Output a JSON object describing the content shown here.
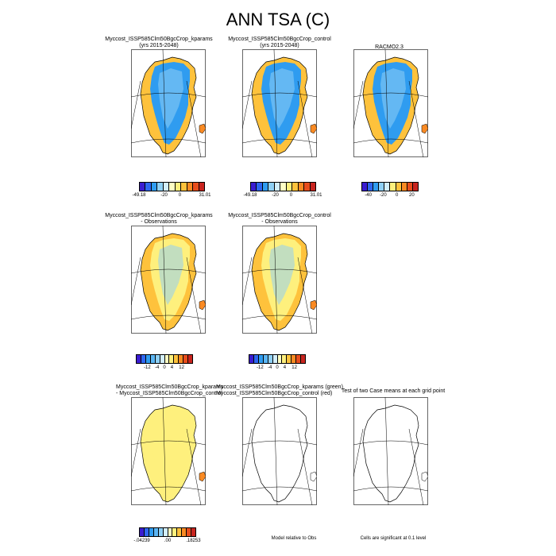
{
  "title": "ANN TSA (C)",
  "panels": [
    {
      "title": "Myccost_ISSP585Clm50BgcCrop_kparams",
      "subtitle": "(yrs 2015-2048)",
      "palette": [
        "#3a1cd0",
        "#2e66f0",
        "#2f9cf0",
        "#8fd0f5",
        "#d2eefb",
        "#ffffc4",
        "#fef07d",
        "#fec23c",
        "#f98a23",
        "#e84d1c",
        "#c8241e"
      ],
      "tick_labels": [
        "-49.18",
        "-20",
        "0",
        "31.01"
      ],
      "tick_pos": [
        0,
        0.38,
        0.62,
        1
      ]
    },
    {
      "title": "Myccost_ISSP585Clm50BgcCrop_control",
      "subtitle": "(yrs 2015-2048)",
      "palette": [
        "#3a1cd0",
        "#2e66f0",
        "#2f9cf0",
        "#8fd0f5",
        "#d2eefb",
        "#ffffc4",
        "#fef07d",
        "#fec23c",
        "#f98a23",
        "#e84d1c",
        "#c8241e"
      ],
      "tick_labels": [
        "-49.18",
        "-20",
        "0",
        "31.01"
      ],
      "tick_pos": [
        0,
        0.38,
        0.62,
        1
      ]
    },
    {
      "title": "RACMO2.3",
      "subtitle": "",
      "palette": [
        "#3a1cd0",
        "#2e66f0",
        "#2f9cf0",
        "#8fd0f5",
        "#d2eefb",
        "#fef07d",
        "#fec23c",
        "#f98a23",
        "#e84d1c",
        "#c8241e"
      ],
      "tick_labels": [
        "-40",
        "-20",
        "0",
        "20"
      ],
      "tick_pos": [
        0.12,
        0.38,
        0.62,
        0.88
      ]
    },
    {
      "title": "Myccost_ISSP585Clm50BgcCrop_kparams",
      "subtitle": "- Observations",
      "palette": [
        "#3a1cd0",
        "#2e66f0",
        "#2f9cf0",
        "#5cb6f4",
        "#8fd0f5",
        "#d2eefb",
        "#ffffc4",
        "#fef07d",
        "#fec23c",
        "#f98a23",
        "#e84d1c",
        "#c8241e"
      ],
      "tick_labels": [
        "-12",
        "-4",
        "0",
        "4",
        "12"
      ],
      "tick_pos": [
        0.2,
        0.37,
        0.5,
        0.63,
        0.8
      ]
    },
    {
      "title": "Myccost_ISSP585Clm50BgcCrop_control",
      "subtitle": "- Observations",
      "palette": [
        "#3a1cd0",
        "#2e66f0",
        "#2f9cf0",
        "#5cb6f4",
        "#8fd0f5",
        "#d2eefb",
        "#ffffc4",
        "#fef07d",
        "#fec23c",
        "#f98a23",
        "#e84d1c",
        "#c8241e"
      ],
      "tick_labels": [
        "-12",
        "-4",
        "0",
        "4",
        "12"
      ],
      "tick_pos": [
        0.2,
        0.37,
        0.5,
        0.63,
        0.8
      ]
    },
    {
      "title": "Myccost_ISSP585Clm50BgcCrop_kparams",
      "subtitle": "- Myccost_ISSP585Clm50BgcCrop_control",
      "palette": [
        "#3a1cd0",
        "#2e66f0",
        "#2f9cf0",
        "#5cb6f4",
        "#8fd0f5",
        "#d2eefb",
        "#ffffc4",
        "#fef07d",
        "#fec23c",
        "#f98a23",
        "#e84d1c",
        "#c8241e"
      ],
      "tick_labels": [
        "-.04239",
        ".00",
        ".18253"
      ],
      "tick_pos": [
        0.05,
        0.5,
        0.95
      ]
    },
    {
      "title": "Myccost_ISSP585Clm50BgcCrop_kparams (green)",
      "subtitle": "Myccost_ISSP585Clm50BgcCrop_control (red)",
      "note": "Model relative to Obs"
    },
    {
      "title": "Test of two Case means at each grid point",
      "subtitle": "",
      "note": "Cells are significant at 0.1 level"
    }
  ],
  "chart_data": {
    "type": "heatmap",
    "title": "ANN TSA (C)",
    "region": "Greenland",
    "panels": [
      {
        "name": "Myccost_ISSP585Clm50BgcCrop_kparams (yrs 2015-2048)",
        "color_min": -49.18,
        "color_max": 31.01,
        "colorbar_ticks": [
          -49.18,
          -20,
          0,
          31.01
        ]
      },
      {
        "name": "Myccost_ISSP585Clm50BgcCrop_control (yrs 2015-2048)",
        "color_min": -49.18,
        "color_max": 31.01,
        "colorbar_ticks": [
          -49.18,
          -20,
          0,
          31.01
        ]
      },
      {
        "name": "RACMO2.3",
        "colorbar_ticks": [
          -40,
          -20,
          0,
          20
        ]
      },
      {
        "name": "Myccost_ISSP585Clm50BgcCrop_kparams - Observations",
        "colorbar_ticks": [
          -12,
          -4,
          0,
          4,
          12
        ]
      },
      {
        "name": "Myccost_ISSP585Clm50BgcCrop_control - Observations",
        "colorbar_ticks": [
          -12,
          -4,
          0,
          4,
          12
        ]
      },
      {
        "name": "Myccost_ISSP585Clm50BgcCrop_kparams - Myccost_ISSP585Clm50BgcCrop_control",
        "color_min": -0.04239,
        "color_max": 0.18253,
        "colorbar_ticks": [
          -0.04239,
          0.0,
          0.18253
        ]
      },
      {
        "name": "Myccost_ISSP585Clm50BgcCrop_kparams (green) / Myccost_ISSP585Clm50BgcCrop_control (red)",
        "note": "Model relative to Obs"
      },
      {
        "name": "Test of two Case means at each grid point",
        "note": "Cells are significant at 0.1 level"
      }
    ]
  }
}
